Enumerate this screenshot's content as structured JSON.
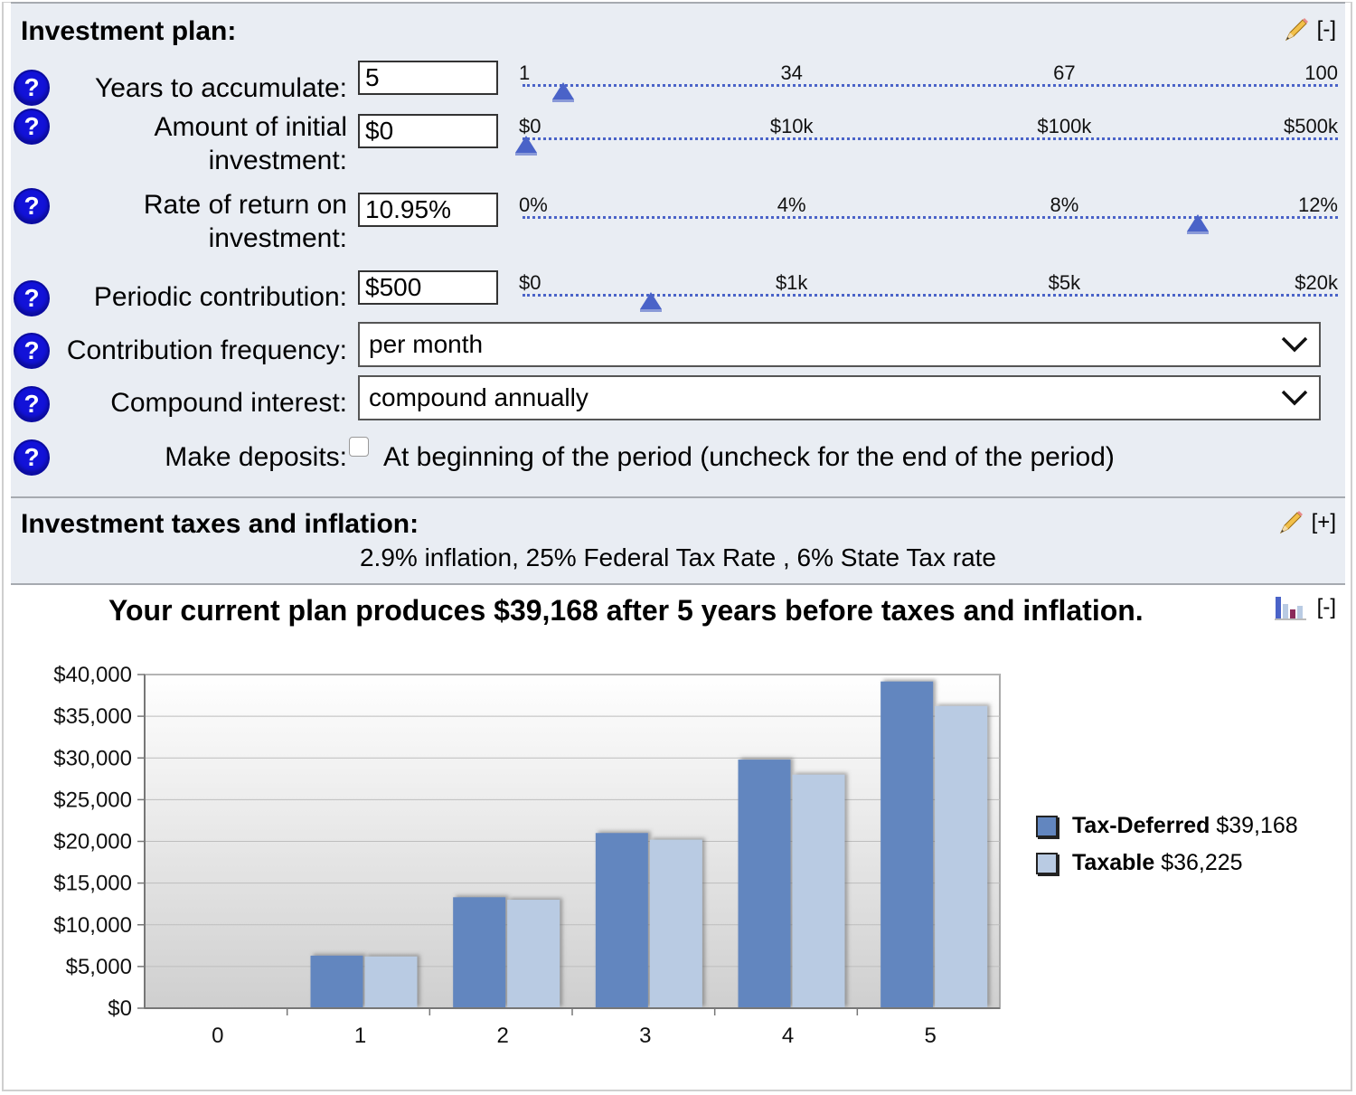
{
  "plan": {
    "title": "Investment plan:",
    "collapse_label": "[-]",
    "fields": [
      {
        "label_lines": [
          "Years to accumulate:"
        ],
        "value": "5",
        "slider": {
          "ticks": [
            "1",
            "34",
            "67",
            "100"
          ],
          "level": 0.05
        }
      },
      {
        "label_lines": [
          "Amount of initial",
          "investment:"
        ],
        "value": "$0",
        "slider": {
          "ticks": [
            "$0",
            "$10k",
            "$100k",
            "$500k"
          ],
          "level": 0.0
        }
      },
      {
        "label_lines": [
          "Rate of return on",
          "investment:"
        ],
        "value": "10.95%",
        "slider": {
          "ticks": [
            "0%",
            "4%",
            "8%",
            "12%"
          ],
          "level": 0.9125
        }
      },
      {
        "label_lines": [
          "Periodic contribution:"
        ],
        "value": "$500",
        "slider": {
          "ticks": [
            "$0",
            "$1k",
            "$5k",
            "$20k"
          ],
          "level": 0.17
        }
      }
    ],
    "frequency": {
      "label": "Contribution frequency:",
      "selected": "per month"
    },
    "compound": {
      "label": "Compound interest:",
      "selected": "compound annually"
    },
    "deposits": {
      "label": "Make deposits:",
      "option": "At beginning of the period (uncheck for the end of the period)",
      "checked": false
    }
  },
  "taxes": {
    "title": "Investment taxes and inflation:",
    "expand_label": "[+]",
    "summary": "2.9% inflation, 25% Federal Tax Rate , 6% State Tax rate"
  },
  "result": {
    "title": "Your current plan produces $39,168 after 5 years before taxes and inflation.",
    "collapse_label": "[-]"
  },
  "chart_data": {
    "type": "bar",
    "categories": [
      "0",
      "1",
      "2",
      "3",
      "4",
      "5"
    ],
    "series": [
      {
        "name": "Tax-Deferred",
        "total": "$39,168",
        "color": "#6286bf",
        "values": [
          0,
          6300,
          13300,
          21000,
          29800,
          39168
        ]
      },
      {
        "name": "Taxable",
        "total": "$36,225",
        "color": "#b9cbe3",
        "values": [
          0,
          6200,
          13000,
          20200,
          28000,
          36225
        ]
      }
    ],
    "y_ticks": [
      "$0",
      "$5,000",
      "$10,000",
      "$15,000",
      "$20,000",
      "$25,000",
      "$30,000",
      "$35,000",
      "$40,000"
    ],
    "ylim": [
      0,
      40000
    ],
    "grid": true,
    "legend_position": "right"
  }
}
